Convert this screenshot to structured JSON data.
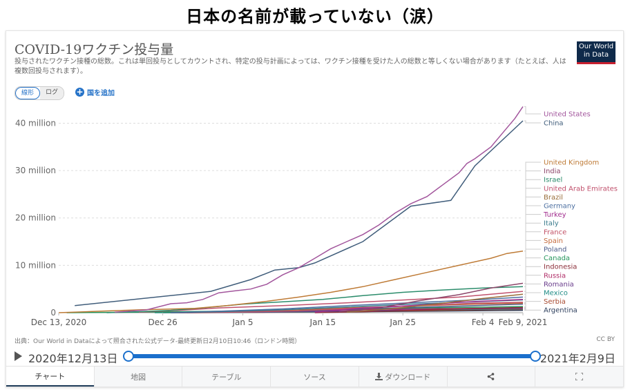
{
  "headline": "日本の名前が載っていない（涙）",
  "header": {
    "title": "COVID-19ワクチン投与量",
    "subtitle": "投与されたワクチン接種の総数。これは単回投与としてカウントされ、特定の投与計画によっては、ワクチン接種を受けた人の総数と等しくない場合があります（たとえば、人は複数回投与されます）。",
    "logo_line1": "Our World",
    "logo_line2": "in Data"
  },
  "controls": {
    "linear_label": "線形",
    "log_label": "ログ",
    "add_country_label": "国を追加",
    "add_icon": "plus-circle-icon"
  },
  "chart_data": {
    "type": "line",
    "title": "COVID-19ワクチン投与量",
    "xlabel": "",
    "ylabel": "",
    "x_range": [
      "2020-12-13",
      "2021-02-09"
    ],
    "ylim": [
      0,
      44000000
    ],
    "grid": true,
    "legend": "right (line-end labels)",
    "y_ticks": [
      {
        "value": 0,
        "label": "0"
      },
      {
        "value": 10000000,
        "label": "10 million"
      },
      {
        "value": 20000000,
        "label": "20 million"
      },
      {
        "value": 30000000,
        "label": "30 million"
      },
      {
        "value": 40000000,
        "label": "40 million"
      }
    ],
    "x_ticks": [
      {
        "day": 0,
        "label": "Dec 13, 2020"
      },
      {
        "day": 13,
        "label": "Dec 26"
      },
      {
        "day": 23,
        "label": "Jan 5"
      },
      {
        "day": 33,
        "label": "Jan 15"
      },
      {
        "day": 43,
        "label": "Jan 25"
      },
      {
        "day": 53,
        "label": "Feb 4"
      },
      {
        "day": 58,
        "label": "Feb 9, 2021"
      }
    ],
    "series": [
      {
        "name": "United States",
        "color": "#a2559c",
        "points": [
          [
            7,
            0.1
          ],
          [
            11,
            0.6
          ],
          [
            14,
            1.9
          ],
          [
            16,
            2.1
          ],
          [
            18,
            2.8
          ],
          [
            20,
            4.2
          ],
          [
            22,
            4.6
          ],
          [
            24,
            5.0
          ],
          [
            26,
            6.0
          ],
          [
            28,
            8.0
          ],
          [
            30,
            9.5
          ],
          [
            32,
            11.5
          ],
          [
            34,
            13.5
          ],
          [
            36,
            15.0
          ],
          [
            38,
            16.5
          ],
          [
            40,
            18.5
          ],
          [
            42,
            21.0
          ],
          [
            44,
            23.0
          ],
          [
            46,
            24.5
          ],
          [
            48,
            27.0
          ],
          [
            50,
            29.5
          ],
          [
            51,
            31.5
          ],
          [
            52,
            32.5
          ],
          [
            54,
            35.0
          ],
          [
            56,
            39.0
          ],
          [
            57,
            41.0
          ],
          [
            58,
            43.5
          ]
        ]
      },
      {
        "name": "China",
        "color": "#3f5c7a",
        "points": [
          [
            2,
            1.5
          ],
          [
            19,
            4.5
          ],
          [
            24,
            7.0
          ],
          [
            27,
            9.0
          ],
          [
            30,
            9.5
          ],
          [
            32,
            10.5
          ],
          [
            38,
            15.0
          ],
          [
            44,
            22.5
          ],
          [
            49,
            23.7
          ],
          [
            52,
            31.0
          ],
          [
            58,
            40.5
          ]
        ]
      },
      {
        "name": "United Kingdom",
        "color": "#be7a35",
        "points": [
          [
            0,
            0
          ],
          [
            5,
            0.3
          ],
          [
            10,
            0.6
          ],
          [
            17,
            0.9
          ],
          [
            21,
            1.5
          ],
          [
            26,
            2.4
          ],
          [
            30,
            3.3
          ],
          [
            34,
            4.3
          ],
          [
            38,
            5.5
          ],
          [
            42,
            7.0
          ],
          [
            46,
            8.5
          ],
          [
            50,
            10.0
          ],
          [
            54,
            11.5
          ],
          [
            56,
            12.5
          ],
          [
            58,
            13.0
          ]
        ]
      },
      {
        "name": "India",
        "color": "#8c4569",
        "points": [
          [
            35,
            0.2
          ],
          [
            40,
            1.0
          ],
          [
            45,
            2.5
          ],
          [
            50,
            3.8
          ],
          [
            54,
            5.2
          ],
          [
            58,
            6.2
          ]
        ]
      },
      {
        "name": "Israel",
        "color": "#2b8c6b",
        "points": [
          [
            6,
            0
          ],
          [
            10,
            0.2
          ],
          [
            14,
            0.5
          ],
          [
            18,
            1.0
          ],
          [
            23,
            1.8
          ],
          [
            28,
            2.3
          ],
          [
            33,
            2.8
          ],
          [
            38,
            3.6
          ],
          [
            43,
            4.3
          ],
          [
            48,
            4.8
          ],
          [
            53,
            5.2
          ],
          [
            58,
            5.5
          ]
        ]
      },
      {
        "name": "United Arab Emirates",
        "color": "#c0506c",
        "points": [
          [
            10,
            0.1
          ],
          [
            15,
            0.5
          ],
          [
            20,
            1.0
          ],
          [
            28,
            1.5
          ],
          [
            35,
            2.0
          ],
          [
            42,
            2.6
          ],
          [
            50,
            3.3
          ],
          [
            58,
            4.5
          ]
        ]
      },
      {
        "name": "Brazil",
        "color": "#986d39",
        "points": [
          [
            36,
            0.1
          ],
          [
            42,
            0.9
          ],
          [
            48,
            2.0
          ],
          [
            53,
            3.0
          ],
          [
            58,
            3.9
          ]
        ]
      },
      {
        "name": "Germany",
        "color": "#4c6fa0",
        "points": [
          [
            14,
            0
          ],
          [
            20,
            0.3
          ],
          [
            28,
            0.8
          ],
          [
            36,
            1.5
          ],
          [
            44,
            2.1
          ],
          [
            52,
            2.7
          ],
          [
            58,
            3.3
          ]
        ]
      },
      {
        "name": "Turkey",
        "color": "#a22d8e",
        "points": [
          [
            32,
            0.1
          ],
          [
            38,
            1.0
          ],
          [
            44,
            1.5
          ],
          [
            50,
            2.2
          ],
          [
            58,
            2.8
          ]
        ]
      },
      {
        "name": "Italy",
        "color": "#3a7b8c",
        "points": [
          [
            14,
            0
          ],
          [
            20,
            0.2
          ],
          [
            28,
            0.6
          ],
          [
            36,
            1.2
          ],
          [
            44,
            1.8
          ],
          [
            52,
            2.3
          ],
          [
            58,
            2.7
          ]
        ]
      },
      {
        "name": "France",
        "color": "#c15065",
        "points": [
          [
            15,
            0
          ],
          [
            22,
            0.1
          ],
          [
            30,
            0.4
          ],
          [
            38,
            1.0
          ],
          [
            46,
            1.6
          ],
          [
            52,
            2.0
          ],
          [
            58,
            2.2
          ]
        ]
      },
      {
        "name": "Spain",
        "color": "#c46b3e",
        "points": [
          [
            14,
            0
          ],
          [
            20,
            0.1
          ],
          [
            28,
            0.5
          ],
          [
            36,
            1.0
          ],
          [
            44,
            1.4
          ],
          [
            52,
            1.8
          ],
          [
            58,
            2.0
          ]
        ]
      },
      {
        "name": "Poland",
        "color": "#4c5c8a",
        "points": [
          [
            14,
            0
          ],
          [
            22,
            0.1
          ],
          [
            30,
            0.3
          ],
          [
            38,
            0.8
          ],
          [
            46,
            1.2
          ],
          [
            52,
            1.5
          ],
          [
            58,
            1.8
          ]
        ]
      },
      {
        "name": "Canada",
        "color": "#26955c",
        "points": [
          [
            1,
            0
          ],
          [
            10,
            0.1
          ],
          [
            20,
            0.3
          ],
          [
            30,
            0.6
          ],
          [
            40,
            0.9
          ],
          [
            50,
            1.1
          ],
          [
            58,
            1.3
          ]
        ]
      },
      {
        "name": "Indonesia",
        "color": "#8c2f3a",
        "points": [
          [
            32,
            0
          ],
          [
            38,
            0.2
          ],
          [
            44,
            0.5
          ],
          [
            50,
            0.8
          ],
          [
            58,
            1.1
          ]
        ]
      },
      {
        "name": "Russia",
        "color": "#b02e68",
        "points": [
          [
            30,
            0.4
          ],
          [
            36,
            0.6
          ],
          [
            44,
            0.8
          ],
          [
            52,
            0.9
          ],
          [
            58,
            1.0
          ]
        ]
      },
      {
        "name": "Romania",
        "color": "#6a3d8c",
        "points": [
          [
            15,
            0
          ],
          [
            24,
            0.1
          ],
          [
            34,
            0.3
          ],
          [
            44,
            0.6
          ],
          [
            52,
            0.8
          ],
          [
            58,
            0.9
          ]
        ]
      },
      {
        "name": "Mexico",
        "color": "#1f8c86",
        "points": [
          [
            12,
            0
          ],
          [
            22,
            0.05
          ],
          [
            32,
            0.2
          ],
          [
            42,
            0.5
          ],
          [
            50,
            0.7
          ],
          [
            58,
            0.8
          ]
        ]
      },
      {
        "name": "Serbia",
        "color": "#a84a30",
        "points": [
          [
            13,
            0
          ],
          [
            24,
            0.05
          ],
          [
            34,
            0.2
          ],
          [
            44,
            0.4
          ],
          [
            52,
            0.6
          ],
          [
            58,
            0.7
          ]
        ]
      },
      {
        "name": "Argentina",
        "color": "#2d3e5c",
        "points": [
          [
            16,
            0
          ],
          [
            26,
            0.1
          ],
          [
            36,
            0.2
          ],
          [
            46,
            0.3
          ],
          [
            52,
            0.4
          ],
          [
            58,
            0.5
          ]
        ]
      }
    ],
    "y_unit": "million doses"
  },
  "footer": {
    "source": "出典：Our World in Dataによって照合された公式データ-最終更新日2月10日10:46（ロンドン時間）",
    "license": "CC BY",
    "timeline_start": "2020年12月13日",
    "timeline_end": "2021年2月9日",
    "timeline_range_days": [
      0,
      58
    ]
  },
  "tabs": [
    {
      "label": "チャート",
      "active": true
    },
    {
      "label": "地図",
      "active": false
    },
    {
      "label": "テーブル",
      "active": false
    },
    {
      "label": "ソース",
      "active": false
    },
    {
      "label": "ダウンロード",
      "icon": "download-icon",
      "active": false
    },
    {
      "label": "",
      "icon": "share-icon",
      "active": false
    },
    {
      "label": "",
      "icon": "fullscreen-icon",
      "active": false
    }
  ]
}
